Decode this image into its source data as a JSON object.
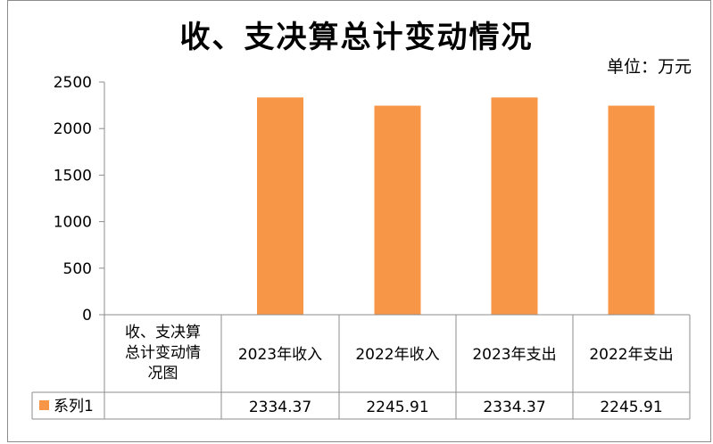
{
  "unit_label": "单位：万元",
  "chart_data": {
    "type": "bar",
    "title": "收、支决算总计变动情况",
    "categories": [
      "2023年收入",
      "2022年收入",
      "2023年支出",
      "2022年支出"
    ],
    "series": [
      {
        "name": "系列1",
        "values": [
          2334.37,
          2245.91,
          2334.37,
          2245.91
        ],
        "color": "#F79646"
      }
    ],
    "value_labels": [
      "2334.37",
      "2245.91",
      "2334.37",
      "2245.91"
    ],
    "table_header_lines": [
      "收、支决算",
      "总计变动情",
      "况图"
    ],
    "ylim": [
      0,
      2500
    ],
    "yticks": [
      "0",
      "500",
      "1000",
      "1500",
      "2000",
      "2500"
    ],
    "grid": false,
    "legend": "in-data-table",
    "axis_color": "#8c8c8c"
  }
}
